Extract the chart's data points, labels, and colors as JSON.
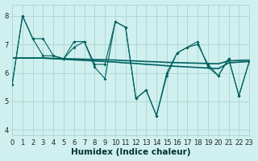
{
  "xlabel": "Humidex (Indice chaleur)",
  "xlim": [
    0,
    23
  ],
  "ylim": [
    3.8,
    8.4
  ],
  "bg_color": "#cff0ee",
  "plot_bg_color": "#cff0ee",
  "major_grid_color": "#b0d8d5",
  "minor_grid_color": "#ddf5f3",
  "line_color": "#006060",
  "series_jagged1": [
    5.6,
    8.0,
    7.2,
    6.6,
    6.6,
    6.5,
    6.9,
    7.1,
    6.2,
    5.8,
    7.8,
    7.6,
    5.1,
    5.4,
    4.5,
    5.9,
    6.7,
    6.9,
    7.1,
    6.2,
    5.9,
    6.5,
    5.2,
    6.4
  ],
  "series_jagged2": [
    5.6,
    8.0,
    7.2,
    7.2,
    6.6,
    6.5,
    7.1,
    7.1,
    6.3,
    6.3,
    7.8,
    7.6,
    5.1,
    5.4,
    4.5,
    6.0,
    6.7,
    6.9,
    7.0,
    6.3,
    5.9,
    6.5,
    5.2,
    6.4
  ],
  "series_trend1": [
    6.52,
    6.52,
    6.52,
    6.52,
    6.5,
    6.48,
    6.46,
    6.44,
    6.42,
    6.4,
    6.38,
    6.35,
    6.33,
    6.3,
    6.28,
    6.25,
    6.23,
    6.21,
    6.19,
    6.17,
    6.15,
    6.35,
    6.38,
    6.4
  ],
  "series_trend2": [
    6.52,
    6.52,
    6.52,
    6.52,
    6.51,
    6.5,
    6.49,
    6.48,
    6.47,
    6.46,
    6.45,
    6.43,
    6.42,
    6.4,
    6.39,
    6.37,
    6.36,
    6.35,
    6.34,
    6.33,
    6.32,
    6.42,
    6.44,
    6.45
  ],
  "xticks": [
    0,
    1,
    2,
    3,
    4,
    5,
    6,
    7,
    8,
    9,
    10,
    11,
    12,
    13,
    14,
    15,
    16,
    17,
    18,
    19,
    20,
    21,
    22,
    23
  ],
  "yticks": [
    4,
    5,
    6,
    7,
    8
  ],
  "tick_fontsize": 6,
  "label_fontsize": 7.5
}
